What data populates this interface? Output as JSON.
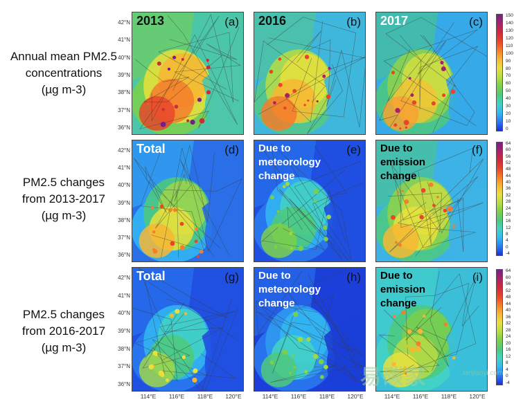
{
  "rows": [
    {
      "label_lines": [
        "Annual mean PM2.5",
        "concentrations",
        "(µg m-3)"
      ]
    },
    {
      "label_lines": [
        "PM2.5 changes",
        "from 2013-2017",
        "(µg m-3)"
      ]
    },
    {
      "label_lines": [
        "PM2.5 changes",
        "from 2016-2017",
        "(µg m-3)"
      ]
    }
  ],
  "panels": [
    {
      "title": "2013",
      "label": "(a)",
      "theme": "conc_high"
    },
    {
      "title": "2016",
      "label": "(b)",
      "theme": "conc_mid"
    },
    {
      "title": "2017",
      "label": "(c)",
      "theme": "conc_low"
    },
    {
      "title": "Total",
      "label": "(d)",
      "theme": "chg_total"
    },
    {
      "title": "Due to meteorology change",
      "label": "(e)",
      "theme": "chg_met"
    },
    {
      "title": "Due to emission change",
      "label": "(f)",
      "theme": "chg_emis"
    },
    {
      "title": "Total",
      "label": "(g)",
      "theme": "chg_total2"
    },
    {
      "title": "Due to meteorology change",
      "label": "(h)",
      "theme": "chg_met2"
    },
    {
      "title": "Due to emission change",
      "label": "(i)",
      "theme": "chg_emis2"
    }
  ],
  "lat_ticks": [
    "42°N",
    "41°N",
    "40°N",
    "39°N",
    "38°N",
    "37°N",
    "36°N"
  ],
  "lon_ticks": [
    "114°E",
    "116°E",
    "118°E",
    "120°E"
  ],
  "colorbars": [
    {
      "ticks": [
        "150",
        "140",
        "130",
        "120",
        "110",
        "100",
        "90",
        "80",
        "70",
        "60",
        "50",
        "40",
        "30",
        "20",
        "10",
        "0"
      ]
    },
    {
      "ticks": [
        "64",
        "60",
        "56",
        "52",
        "48",
        "44",
        "40",
        "36",
        "32",
        "28",
        "24",
        "20",
        "16",
        "12",
        "8",
        "4",
        "0",
        "-4"
      ]
    },
    {
      "ticks": [
        "64",
        "60",
        "56",
        "52",
        "48",
        "44",
        "40",
        "36",
        "32",
        "28",
        "24",
        "20",
        "16",
        "12",
        "8",
        "4",
        "0",
        "-4"
      ]
    }
  ],
  "colorbar_colors": [
    "#1a2fd8",
    "#2a7bf0",
    "#33b9f2",
    "#43d3c3",
    "#4dc97d",
    "#7ccf4a",
    "#b6dc45",
    "#e8e13c",
    "#f7b733",
    "#f57d2b",
    "#e8452a",
    "#cf2a3c",
    "#a8226a",
    "#7a1d88"
  ],
  "watermark": {
    "text": "易碳家",
    "site": "tanjiaoyi.com"
  }
}
